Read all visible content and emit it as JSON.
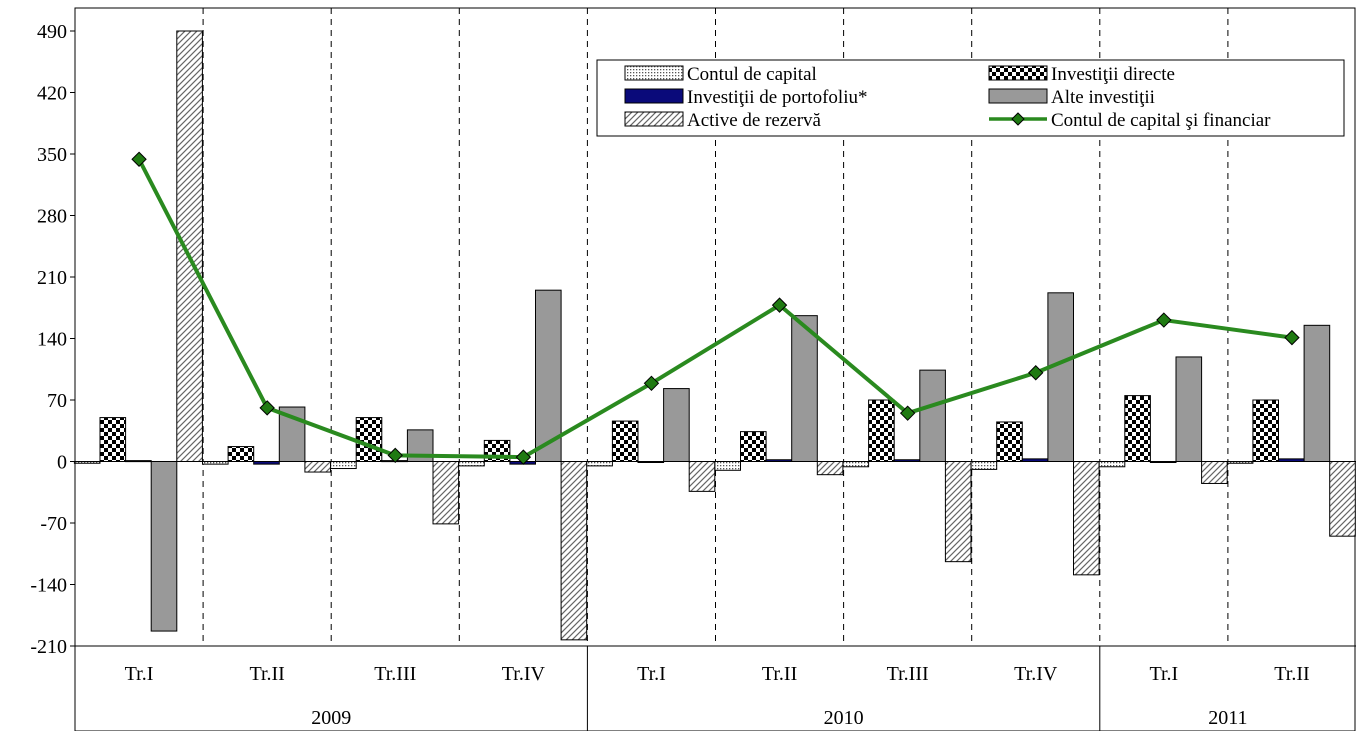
{
  "chart_data": {
    "type": "bar",
    "title": "",
    "xlabel": "",
    "ylabel": "",
    "ylim": [
      -210,
      490
    ],
    "yticks": [
      490,
      420,
      350,
      280,
      210,
      140,
      70,
      0,
      -70,
      -140,
      -210
    ],
    "categories": [
      "Tr.I",
      "Tr.II",
      "Tr.III",
      "Tr.IV",
      "Tr.I",
      "Tr.II",
      "Tr.III",
      "Tr.IV",
      "Tr.I",
      "Tr.II"
    ],
    "years": [
      {
        "label": "2009",
        "count": 4
      },
      {
        "label": "2010",
        "count": 4
      },
      {
        "label": "2011",
        "count": 2
      }
    ],
    "series": [
      {
        "name": "Contul de capital",
        "kind": "bar",
        "pattern": "dots",
        "values": [
          -2,
          -3,
          -8,
          -5,
          -5,
          -10,
          -6,
          -9,
          -6,
          -2
        ]
      },
      {
        "name": "Investiţii directe",
        "kind": "bar",
        "pattern": "checker",
        "values": [
          50,
          17,
          50,
          24,
          46,
          34,
          70,
          45,
          75,
          70
        ]
      },
      {
        "name": "Investiţii de portofoliu*",
        "kind": "bar",
        "pattern": "navy",
        "values": [
          1,
          -3,
          1,
          -3,
          0,
          2,
          2,
          3,
          0,
          3
        ]
      },
      {
        "name": "Alte investiţii",
        "kind": "bar",
        "pattern": "gray",
        "values": [
          -193,
          62,
          36,
          195,
          83,
          166,
          104,
          192,
          119,
          155
        ]
      },
      {
        "name": "Active de rezervă",
        "kind": "bar",
        "pattern": "hatch",
        "values": [
          490,
          -12,
          -71,
          -203,
          -34,
          -15,
          -114,
          -129,
          -25,
          -85
        ]
      },
      {
        "name": "Contul de capital şi financiar",
        "kind": "line",
        "color": "#2a8a1f",
        "marker_color": "#1f7a12",
        "values": [
          344,
          61,
          7,
          5,
          89,
          178,
          55,
          101,
          161,
          141
        ]
      }
    ],
    "legend_position": "top-right",
    "grid": "vertical dashed separators between quarters"
  }
}
